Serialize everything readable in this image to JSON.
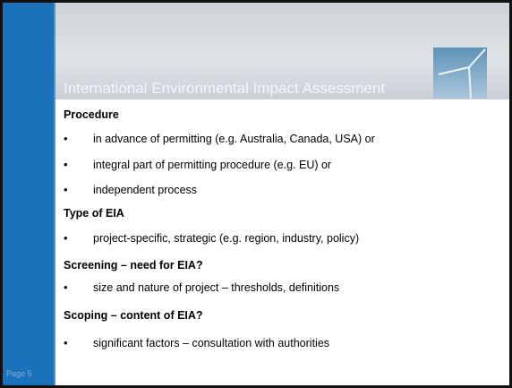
{
  "slide": {
    "title": "International Environmental Impact Assessment",
    "page": "Page 5",
    "sections": [
      {
        "heading": "Procedure",
        "bullets": [
          "in advance of permitting (e.g. Australia, Canada, USA) or",
          "integral part of permitting procedure (e.g. EU) or",
          "independent process"
        ]
      },
      {
        "heading": "Type of EIA",
        "bullets": [
          "project-specific, strategic (e.g. region, industry, policy)"
        ]
      },
      {
        "heading": "Screening – need for EIA?",
        "bullets": [
          "size and nature of project – thresholds, definitions"
        ]
      },
      {
        "heading": "Scoping – content of EIA?",
        "bullets": [
          "significant factors – consultation  with authorities"
        ]
      }
    ]
  }
}
